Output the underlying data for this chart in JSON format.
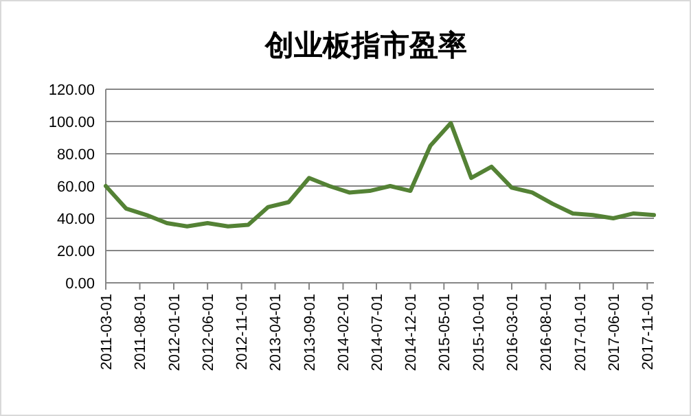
{
  "chart_data": {
    "type": "line",
    "title": "创业板指市盈率",
    "x": [
      "2011-03",
      "2011-06",
      "2011-09",
      "2011-12",
      "2012-03",
      "2012-06",
      "2012-09",
      "2012-12",
      "2013-03",
      "2013-06",
      "2013-09",
      "2013-12",
      "2014-03",
      "2014-06",
      "2014-09",
      "2014-12",
      "2015-03",
      "2015-06",
      "2015-09",
      "2015-12",
      "2016-03",
      "2016-06",
      "2016-09",
      "2016-12",
      "2017-03",
      "2017-06",
      "2017-09",
      "2017-12"
    ],
    "series": [
      {
        "color": "#548235",
        "values": [
          60,
          46,
          42,
          37,
          35,
          37,
          35,
          36,
          47,
          50,
          65,
          60,
          56,
          57,
          60,
          57,
          85,
          99,
          65,
          72,
          59,
          56,
          49,
          43,
          42,
          40,
          43,
          42
        ]
      }
    ],
    "xlim": [
      "2011-03-01",
      "2017-12-01"
    ],
    "xticks": [
      {
        "value": "2011-03-01",
        "label": "2011-03-01"
      },
      {
        "value": "2011-08-01",
        "label": "2011-08-01"
      },
      {
        "value": "2012-01-01",
        "label": "2012-01-01"
      },
      {
        "value": "2012-06-01",
        "label": "2012-06-01"
      },
      {
        "value": "2012-11-01",
        "label": "2012-11-01"
      },
      {
        "value": "2013-04-01",
        "label": "2013-04-01"
      },
      {
        "value": "2013-09-01",
        "label": "2013-09-01"
      },
      {
        "value": "2014-02-01",
        "label": "2014-02-01"
      },
      {
        "value": "2014-07-01",
        "label": "2014-07-01"
      },
      {
        "value": "2014-12-01",
        "label": "2014-12-01"
      },
      {
        "value": "2015-05-01",
        "label": "2015-05-01"
      },
      {
        "value": "2015-10-01",
        "label": "2015-10-01"
      },
      {
        "value": "2016-03-01",
        "label": "2016-03-01"
      },
      {
        "value": "2016-08-01",
        "label": "2016-08-01"
      },
      {
        "value": "2017-01-01",
        "label": "2017-01-01"
      },
      {
        "value": "2017-06-01",
        "label": "2017-06-01"
      },
      {
        "value": "2017-11-01",
        "label": "2017-11-01"
      }
    ],
    "ylim": [
      0,
      120
    ],
    "yticks": [
      {
        "value": 0,
        "label": "0.00"
      },
      {
        "value": 20,
        "label": "20.00"
      },
      {
        "value": 40,
        "label": "40.00"
      },
      {
        "value": 60,
        "label": "60.00"
      },
      {
        "value": 80,
        "label": "80.00"
      },
      {
        "value": 100,
        "label": "100.00"
      },
      {
        "value": 120,
        "label": "120.00"
      }
    ],
    "grid": "y",
    "marker": "none",
    "line_style": "solid"
  }
}
